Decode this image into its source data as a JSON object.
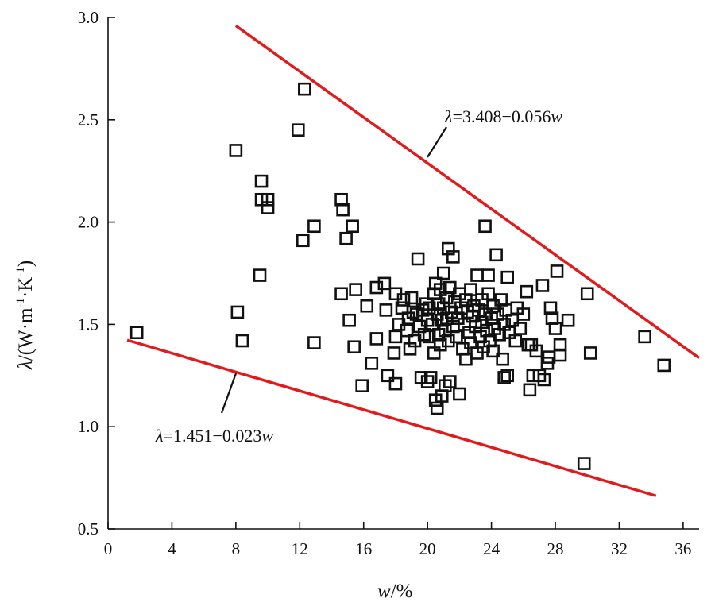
{
  "chart_data": {
    "type": "scatter",
    "title": "",
    "xlabel": "w/%",
    "xlabel_var": "w",
    "xlabel_unit": "/%",
    "ylabel": "λ/(W·m-1·K-1)",
    "ylabel_parts": {
      "lambda": "λ",
      "pre": "/(W·m",
      "sup1": "-1",
      "mid": "·K",
      "sup2": "-1",
      "post": ")"
    },
    "xlim": [
      0,
      37
    ],
    "ylim": [
      0.5,
      3.0
    ],
    "xticks": [
      0,
      4,
      8,
      12,
      16,
      20,
      24,
      28,
      32,
      36
    ],
    "yticks": [
      0.5,
      1.0,
      1.5,
      2.0,
      2.5,
      3.0
    ],
    "x_tick_labels": [
      "0",
      "4",
      "8",
      "12",
      "16",
      "20",
      "24",
      "28",
      "32",
      "36"
    ],
    "y_tick_labels": [
      "0.5",
      "1.0",
      "1.5",
      "2.0",
      "2.5",
      "3.0"
    ],
    "grid": false,
    "marker": "open-square",
    "marker_color": "#111111",
    "line_color": "#e31a1c",
    "lines": [
      {
        "label": "λ=3.408−0.056w",
        "label_parts": {
          "lambda": "λ",
          "mid": "=3.408−0.056",
          "var": "w"
        },
        "intercept": 3.408,
        "slope": -0.056,
        "x_range": [
          8.0,
          37.0
        ]
      },
      {
        "label": "λ=1.451−0.023w",
        "label_parts": {
          "lambda": "λ",
          "mid": "=1.451−0.023",
          "var": "w"
        },
        "intercept": 1.451,
        "slope": -0.023,
        "x_range": [
          1.2,
          34.3
        ]
      }
    ],
    "points": [
      [
        1.8,
        1.46
      ],
      [
        8.0,
        2.35
      ],
      [
        8.1,
        1.56
      ],
      [
        8.4,
        1.42
      ],
      [
        9.5,
        1.74
      ],
      [
        9.6,
        2.2
      ],
      [
        9.6,
        2.11
      ],
      [
        10.0,
        2.11
      ],
      [
        10.0,
        2.07
      ],
      [
        11.9,
        2.45
      ],
      [
        12.2,
        1.91
      ],
      [
        12.3,
        2.65
      ],
      [
        12.9,
        1.98
      ],
      [
        12.9,
        1.41
      ],
      [
        14.6,
        2.11
      ],
      [
        14.7,
        2.06
      ],
      [
        14.6,
        1.65
      ],
      [
        14.9,
        1.92
      ],
      [
        15.3,
        1.98
      ],
      [
        15.1,
        1.52
      ],
      [
        15.4,
        1.39
      ],
      [
        15.5,
        1.67
      ],
      [
        15.9,
        1.2
      ],
      [
        16.2,
        1.59
      ],
      [
        16.5,
        1.31
      ],
      [
        16.8,
        1.68
      ],
      [
        16.8,
        1.43
      ],
      [
        17.3,
        1.7
      ],
      [
        17.4,
        1.57
      ],
      [
        17.5,
        1.25
      ],
      [
        17.9,
        1.36
      ],
      [
        18.0,
        1.21
      ],
      [
        18.0,
        1.65
      ],
      [
        18.0,
        1.44
      ],
      [
        18.2,
        1.5
      ],
      [
        18.4,
        1.58
      ],
      [
        18.5,
        1.62
      ],
      [
        18.7,
        1.47
      ],
      [
        18.8,
        1.53
      ],
      [
        18.9,
        1.38
      ],
      [
        19.0,
        1.63
      ],
      [
        19.1,
        1.56
      ],
      [
        19.2,
        1.42
      ],
      [
        19.3,
        1.55
      ],
      [
        19.4,
        1.82
      ],
      [
        19.5,
        1.49
      ],
      [
        19.6,
        1.24
      ],
      [
        19.7,
        1.57
      ],
      [
        19.8,
        1.45
      ],
      [
        19.9,
        1.6
      ],
      [
        20.0,
        1.52
      ],
      [
        20.0,
        1.22
      ],
      [
        20.1,
        1.58
      ],
      [
        20.1,
        1.44
      ],
      [
        20.2,
        1.24
      ],
      [
        20.3,
        1.5
      ],
      [
        20.4,
        1.65
      ],
      [
        20.4,
        1.36
      ],
      [
        20.5,
        1.7
      ],
      [
        20.5,
        1.13
      ],
      [
        20.6,
        1.55
      ],
      [
        20.6,
        1.09
      ],
      [
        20.7,
        1.6
      ],
      [
        20.7,
        1.45
      ],
      [
        20.8,
        1.67
      ],
      [
        20.8,
        1.4
      ],
      [
        20.9,
        1.15
      ],
      [
        20.9,
        1.52
      ],
      [
        21.0,
        1.75
      ],
      [
        21.0,
        1.58
      ],
      [
        21.1,
        1.47
      ],
      [
        21.1,
        1.2
      ],
      [
        21.2,
        1.63
      ],
      [
        21.2,
        1.53
      ],
      [
        21.3,
        1.87
      ],
      [
        21.3,
        1.42
      ],
      [
        21.4,
        1.68
      ],
      [
        21.4,
        1.22
      ],
      [
        21.5,
        1.56
      ],
      [
        21.6,
        1.83
      ],
      [
        21.6,
        1.49
      ],
      [
        21.7,
        1.61
      ],
      [
        21.8,
        1.44
      ],
      [
        21.9,
        1.53
      ],
      [
        22.0,
        1.16
      ],
      [
        22.0,
        1.65
      ],
      [
        22.1,
        1.58
      ],
      [
        22.2,
        1.38
      ],
      [
        22.3,
        1.5
      ],
      [
        22.4,
        1.62
      ],
      [
        22.4,
        1.33
      ],
      [
        22.5,
        1.56
      ],
      [
        22.6,
        1.46
      ],
      [
        22.7,
        1.67
      ],
      [
        22.7,
        1.41
      ],
      [
        22.8,
        1.54
      ],
      [
        22.9,
        1.59
      ],
      [
        23.0,
        1.49
      ],
      [
        23.1,
        1.74
      ],
      [
        23.1,
        1.36
      ],
      [
        23.2,
        1.57
      ],
      [
        23.3,
        1.44
      ],
      [
        23.4,
        1.62
      ],
      [
        23.4,
        1.51
      ],
      [
        23.5,
        1.39
      ],
      [
        23.6,
        1.98
      ],
      [
        23.6,
        1.55
      ],
      [
        23.7,
        1.47
      ],
      [
        23.8,
        1.65
      ],
      [
        23.8,
        1.74
      ],
      [
        23.9,
        1.42
      ],
      [
        24.0,
        1.53
      ],
      [
        24.1,
        1.59
      ],
      [
        24.1,
        1.37
      ],
      [
        24.2,
        1.48
      ],
      [
        24.3,
        1.84
      ],
      [
        24.4,
        1.55
      ],
      [
        24.5,
        1.45
      ],
      [
        24.6,
        1.62
      ],
      [
        24.7,
        1.33
      ],
      [
        24.8,
        1.5
      ],
      [
        24.8,
        1.24
      ],
      [
        24.9,
        1.57
      ],
      [
        25.0,
        1.73
      ],
      [
        25.0,
        1.25
      ],
      [
        25.1,
        1.46
      ],
      [
        25.3,
        1.52
      ],
      [
        25.5,
        1.42
      ],
      [
        25.6,
        1.58
      ],
      [
        25.8,
        1.48
      ],
      [
        26.0,
        1.55
      ],
      [
        26.2,
        1.66
      ],
      [
        26.3,
        1.4
      ],
      [
        26.4,
        1.18
      ],
      [
        26.5,
        1.4
      ],
      [
        26.6,
        1.25
      ],
      [
        26.8,
        1.37
      ],
      [
        27.0,
        1.25
      ],
      [
        27.2,
        1.69
      ],
      [
        27.3,
        1.23
      ],
      [
        27.5,
        1.31
      ],
      [
        27.6,
        1.34
      ],
      [
        27.7,
        1.58
      ],
      [
        27.8,
        1.53
      ],
      [
        28.0,
        1.48
      ],
      [
        28.1,
        1.76
      ],
      [
        28.3,
        1.4
      ],
      [
        28.3,
        1.35
      ],
      [
        28.8,
        1.52
      ],
      [
        29.8,
        0.82
      ],
      [
        30.0,
        1.65
      ],
      [
        30.2,
        1.36
      ],
      [
        33.6,
        1.44
      ],
      [
        34.8,
        1.3
      ]
    ]
  }
}
